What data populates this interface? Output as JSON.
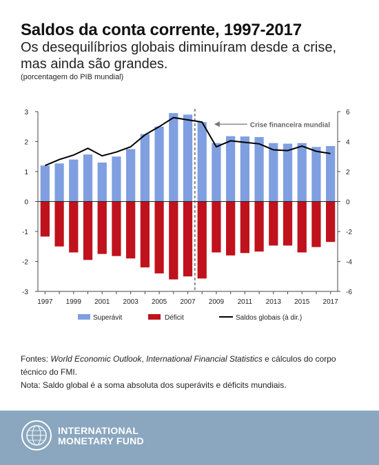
{
  "header": {
    "title": "Saldos da conta corrente, 1997-2017",
    "subtitle": "Os desequilíbrios globais diminuíram desde a crise, mas ainda são grandes.",
    "unit_note": "(porcentagem do PIB mundial)"
  },
  "chart_data": {
    "type": "bar",
    "categories": [
      "1997",
      "1998",
      "1999",
      "2000",
      "2001",
      "2002",
      "2003",
      "2004",
      "2005",
      "2006",
      "2007",
      "2008",
      "2009",
      "2010",
      "2011",
      "2012",
      "2013",
      "2014",
      "2015",
      "2016",
      "2017"
    ],
    "x_tick_labels": [
      "1997",
      "1999",
      "2001",
      "2003",
      "2005",
      "2007",
      "2009",
      "2011",
      "2013",
      "2015",
      "2017"
    ],
    "series": [
      {
        "name": "Superávit",
        "axis": "left",
        "color": "#7f9fe0",
        "values": [
          1.2,
          1.27,
          1.4,
          1.57,
          1.3,
          1.5,
          1.75,
          2.25,
          2.5,
          2.95,
          2.9,
          2.65,
          1.95,
          2.18,
          2.17,
          2.15,
          1.95,
          1.93,
          1.95,
          1.82,
          1.85
        ]
      },
      {
        "name": "Déficit",
        "axis": "left",
        "color": "#c0121c",
        "values": [
          -1.17,
          -1.5,
          -1.7,
          -1.95,
          -1.75,
          -1.82,
          -1.9,
          -2.2,
          -2.4,
          -2.6,
          -2.5,
          -2.57,
          -1.7,
          -1.8,
          -1.72,
          -1.67,
          -1.47,
          -1.47,
          -1.7,
          -1.52,
          -1.35
        ]
      },
      {
        "name": "Saldos globais (à dir.)",
        "axis": "right",
        "color": "#000000",
        "type": "line",
        "values": [
          2.4,
          2.8,
          3.1,
          3.55,
          3.05,
          3.3,
          3.65,
          4.45,
          5.0,
          5.6,
          5.45,
          5.3,
          3.65,
          4.05,
          3.95,
          3.85,
          3.45,
          3.4,
          3.7,
          3.35,
          3.2
        ]
      }
    ],
    "y_left": {
      "ylim": [
        -3,
        3
      ],
      "ticks": [
        -3,
        -2,
        -1,
        0,
        1,
        2,
        3
      ]
    },
    "y_right": {
      "ylim": [
        -6,
        6
      ],
      "ticks": [
        -6,
        -4,
        -2,
        0,
        2,
        4,
        6
      ]
    },
    "annotation": {
      "text": "Crise financeira mundial",
      "at_category": "2007.5"
    },
    "legend_position": "bottom"
  },
  "sources": {
    "prefix": "Fontes: ",
    "weo": "World Economic Outlook",
    "sep": ", ",
    "ifs": "International Financial Statistics",
    "rest": " e cálculos do corpo técnico do FMI.",
    "note": "Nota: Saldo global é a soma absoluta dos superávits e déficits mundiais."
  },
  "footer": {
    "org_line1": "INTERNATIONAL",
    "org_line2": "MONETARY FUND",
    "colors": {
      "band": "#8aa7bf"
    }
  }
}
